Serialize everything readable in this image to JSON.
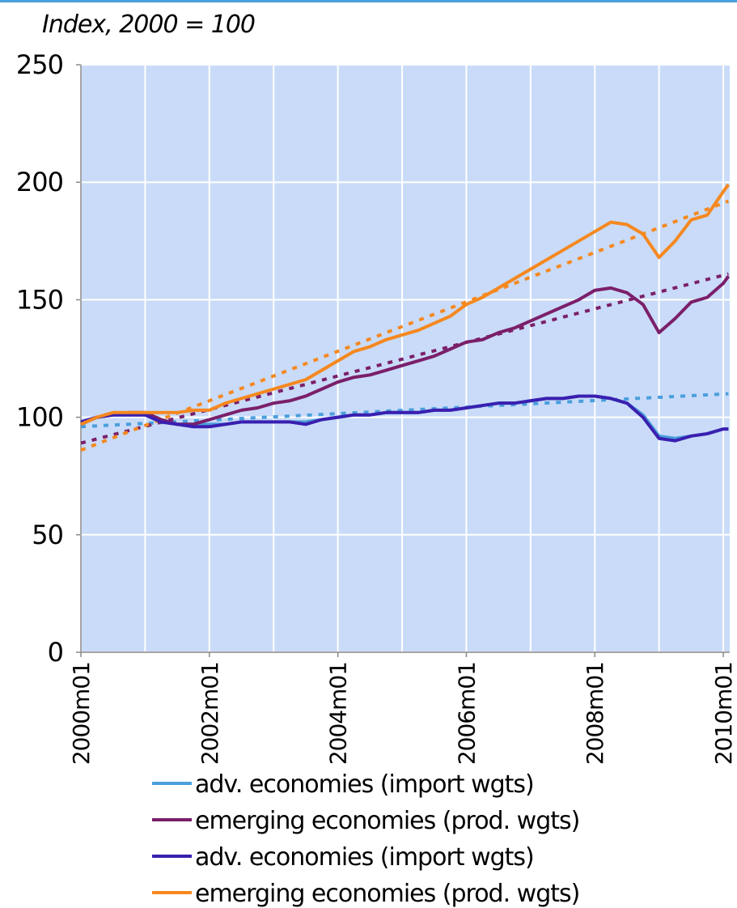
{
  "chart_data": {
    "type": "line",
    "subtitle": "Index, 2000 = 100",
    "xlim": [
      2000,
      2010.1
    ],
    "xticks": [
      {
        "value": 2000,
        "label": "2000m01"
      },
      {
        "value": 2002,
        "label": "2002m01"
      },
      {
        "value": 2004,
        "label": "2004m01"
      },
      {
        "value": 2006,
        "label": "2006m01"
      },
      {
        "value": 2008,
        "label": "2008m01"
      },
      {
        "value": 2010,
        "label": "2010m01"
      }
    ],
    "ylim": [
      0,
      250
    ],
    "yticks": [
      0,
      50,
      100,
      150,
      200,
      250
    ],
    "grid": true,
    "x": [
      2000,
      2000.25,
      2000.5,
      2000.75,
      2001,
      2001.25,
      2001.5,
      2001.75,
      2002,
      2002.25,
      2002.5,
      2002.75,
      2003,
      2003.25,
      2003.5,
      2003.75,
      2004,
      2004.25,
      2004.5,
      2004.75,
      2005,
      2005.25,
      2005.5,
      2005.75,
      2006,
      2006.25,
      2006.5,
      2006.75,
      2007,
      2007.25,
      2007.5,
      2007.75,
      2008,
      2008.25,
      2008.5,
      2008.75,
      2009,
      2009.25,
      2009.5,
      2009.75,
      2010,
      2010.08
    ],
    "series": [
      {
        "name": "adv. economies (import wgts)",
        "color": "#4a9fdc",
        "values": [
          97,
          100,
          101,
          101,
          101,
          98,
          97,
          97,
          97,
          97,
          98,
          98,
          98,
          98,
          98,
          99,
          100,
          101,
          101,
          102,
          102,
          102,
          103,
          103,
          104,
          105,
          106,
          106,
          107,
          108,
          108,
          109,
          109,
          108,
          106,
          101,
          92,
          91,
          92,
          93,
          95,
          95
        ]
      },
      {
        "name": "emerging economies (prod. wgts)",
        "color": "#7b1f6a",
        "values": [
          97,
          100,
          101,
          102,
          102,
          99,
          97,
          97,
          99,
          101,
          103,
          104,
          106,
          107,
          109,
          112,
          115,
          117,
          118,
          120,
          122,
          124,
          126,
          129,
          132,
          133,
          136,
          138,
          141,
          144,
          147,
          150,
          154,
          155,
          153,
          148,
          136,
          142,
          149,
          151,
          157,
          160
        ]
      },
      {
        "name": "adv. economies (import wgts)",
        "color": "#3a1fb0",
        "values": [
          98,
          100,
          101,
          101,
          101,
          98,
          97,
          96,
          96,
          97,
          98,
          98,
          98,
          98,
          97,
          99,
          100,
          101,
          101,
          102,
          102,
          102,
          103,
          103,
          104,
          105,
          106,
          106,
          107,
          108,
          108,
          109,
          109,
          108,
          106,
          100,
          91,
          90,
          92,
          93,
          95,
          95
        ]
      },
      {
        "name": "emerging economies (prod. wgts)",
        "color": "#f5881f",
        "values": [
          97,
          100,
          102,
          102,
          102,
          102,
          102,
          103,
          103,
          106,
          108,
          110,
          112,
          114,
          116,
          120,
          124,
          128,
          130,
          133,
          135,
          137,
          140,
          143,
          148,
          151,
          155,
          159,
          163,
          167,
          171,
          175,
          179,
          183,
          182,
          178,
          168,
          175,
          184,
          186,
          196,
          199
        ]
      }
    ],
    "trend_lines": [
      {
        "color": "#4a9fdc",
        "x": [
          2000,
          2010.08
        ],
        "values": [
          96,
          110
        ]
      },
      {
        "color": "#7b1f6a",
        "x": [
          2000,
          2010.08
        ],
        "values": [
          89,
          161
        ]
      },
      {
        "color": "#f5881f",
        "x": [
          2000,
          2010.08
        ],
        "values": [
          86,
          192
        ]
      }
    ]
  }
}
